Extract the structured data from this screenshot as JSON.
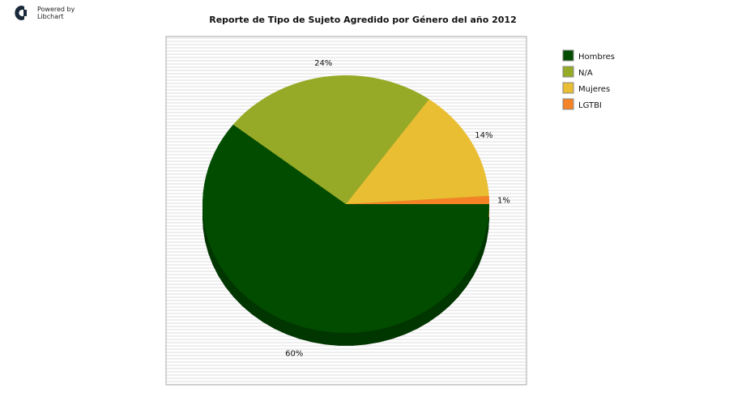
{
  "brand": {
    "line1": "Powered by",
    "line2": "Libchart",
    "logo_icon": "libchart-logo-icon"
  },
  "chart_data": {
    "type": "pie",
    "title": "Reporte de Tipo de Sujeto Agredido por Género del año 2012",
    "series": [
      {
        "name": "Hombres",
        "value": 60,
        "label": "60%",
        "color": "#024c00",
        "shadow": "#013600"
      },
      {
        "name": "N/A",
        "value": 24,
        "label": "24%",
        "color": "#96aa28",
        "shadow": "#6b7a1c"
      },
      {
        "name": "Mujeres",
        "value": 14,
        "label": "14%",
        "color": "#e9be33",
        "shadow": "#b08f25"
      },
      {
        "name": "LGTBI",
        "value": 1,
        "label": "1%",
        "color": "#f48326",
        "shadow": "#b0601c"
      }
    ],
    "legend_position": "right",
    "background": "striped-gray"
  }
}
